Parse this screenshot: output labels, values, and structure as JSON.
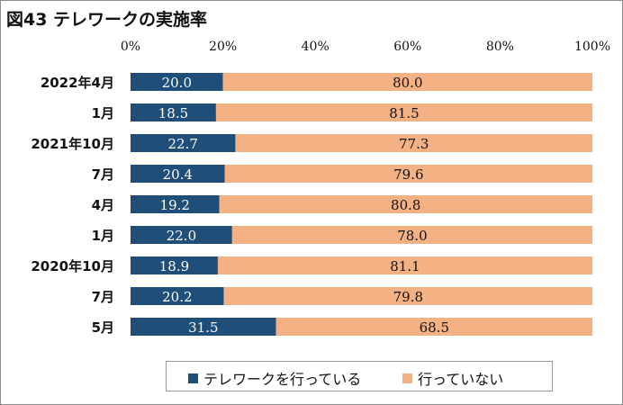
{
  "title": "図43 テレワークの実施率",
  "chart_data": {
    "type": "bar",
    "orientation": "horizontal",
    "stacked": "percent",
    "categories": [
      "2022年4月",
      "1月",
      "2021年10月",
      "7月",
      "4月",
      "1月",
      "2020年10月",
      "7月",
      "5月"
    ],
    "series": [
      {
        "name": "テレワークを行っている",
        "color": "#1f4e79",
        "values": [
          20.0,
          18.5,
          22.7,
          20.4,
          19.2,
          22.0,
          18.9,
          20.2,
          31.5
        ]
      },
      {
        "name": "行っていない",
        "color": "#f4b183",
        "values": [
          80.0,
          81.5,
          77.3,
          79.6,
          80.8,
          78.0,
          81.1,
          79.8,
          68.5
        ]
      }
    ],
    "xlim": [
      0,
      100
    ],
    "x_ticks": [
      "0%",
      "20%",
      "40%",
      "60%",
      "80%",
      "100%"
    ],
    "x_tick_values": [
      0,
      20,
      40,
      60,
      80,
      100
    ],
    "grid": false,
    "legend_position": "bottom"
  }
}
